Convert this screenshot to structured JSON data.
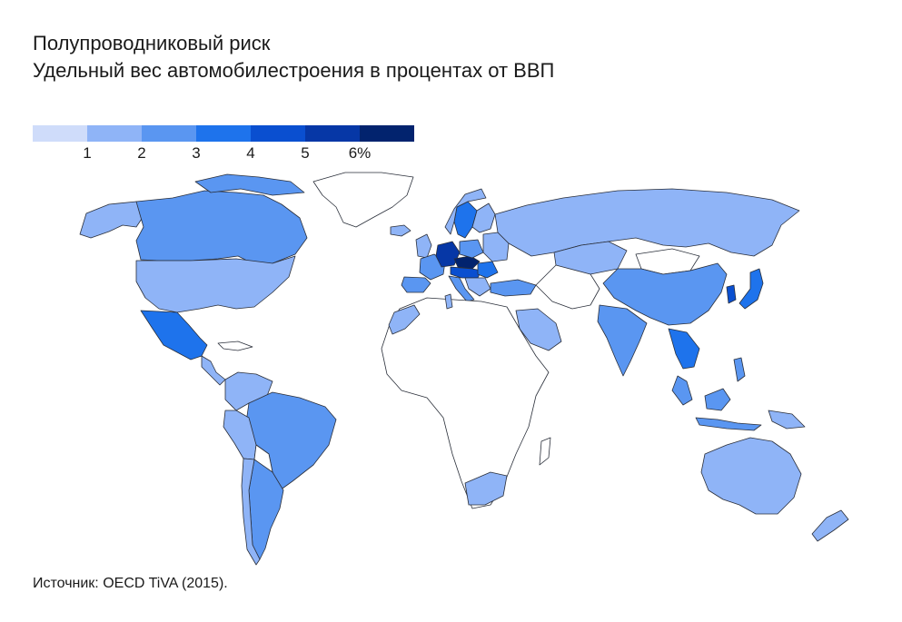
{
  "title": "Полупроводниковый риск",
  "subtitle": "Удельный вес автомобилестроения в процентах от ВВП",
  "legend": {
    "colors": [
      "#cfdcfa",
      "#8fb4f7",
      "#5a96f1",
      "#1e73ec",
      "#0a4fd0",
      "#0637a6",
      "#02236e"
    ],
    "labels": [
      "1",
      "2",
      "3",
      "4",
      "5",
      "6%"
    ]
  },
  "map": {
    "no_data_color": "#ffffff",
    "border_color": "#2a2f3a"
  },
  "source": "Источник: OECD TiVA (2015)."
}
